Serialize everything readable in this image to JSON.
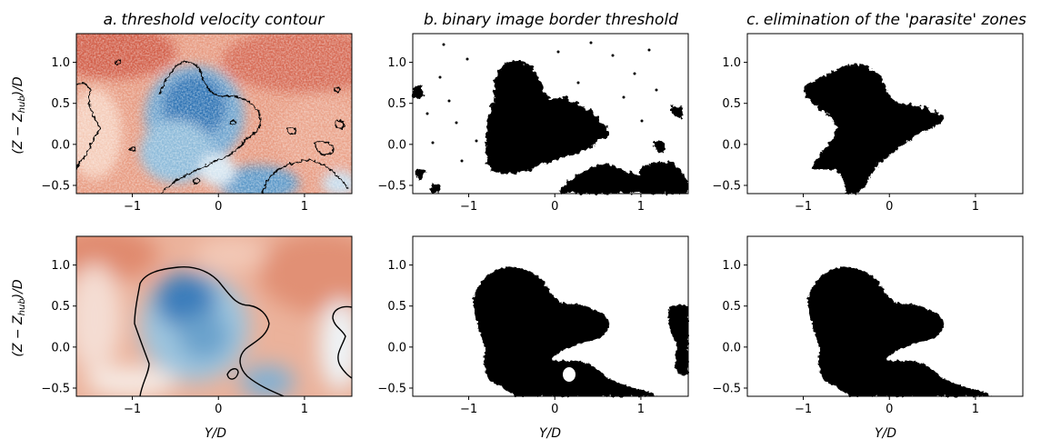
{
  "figure": {
    "columns": [
      {
        "label": "a.",
        "title": "threshold velocity contour"
      },
      {
        "label": "b.",
        "title": "binary image border threshold"
      },
      {
        "label": "c.",
        "title": "elimination of the 'parasite' zones"
      }
    ],
    "y_axis_label": "(Z − Z",
    "y_axis_label_sub": "hub",
    "y_axis_label_end": ")/D",
    "x_axis_label": "Y/D"
  },
  "chart_data": {
    "type": "heatmap",
    "rows": 2,
    "cols": 3,
    "xlim": [
      -1.65,
      1.55
    ],
    "ylim": [
      -0.6,
      1.35
    ],
    "x_ticks": [
      -1,
      0,
      1
    ],
    "x_tick_labels": [
      "−1",
      "0",
      "1"
    ],
    "y_ticks": [
      1.0,
      0.5,
      0.0,
      -0.5
    ],
    "y_tick_labels": [
      "1.0",
      "0.5",
      "0.0",
      "−0.5"
    ],
    "panels": [
      {
        "row": 0,
        "col": 0,
        "kind": "velocity-contour",
        "colormap": "RdBu",
        "smoothing": "raw"
      },
      {
        "row": 0,
        "col": 1,
        "kind": "binary",
        "smoothing": "raw"
      },
      {
        "row": 0,
        "col": 2,
        "kind": "binary-cleaned",
        "smoothing": "raw"
      },
      {
        "row": 1,
        "col": 0,
        "kind": "velocity-contour",
        "colormap": "RdBu",
        "smoothing": "filtered"
      },
      {
        "row": 1,
        "col": 1,
        "kind": "binary",
        "smoothing": "filtered"
      },
      {
        "row": 1,
        "col": 2,
        "kind": "binary-cleaned",
        "smoothing": "filtered"
      }
    ],
    "colors": {
      "low": "#2166ac",
      "mid": "#f7f7f7",
      "high": "#c8432f",
      "mask": "#000000"
    }
  }
}
